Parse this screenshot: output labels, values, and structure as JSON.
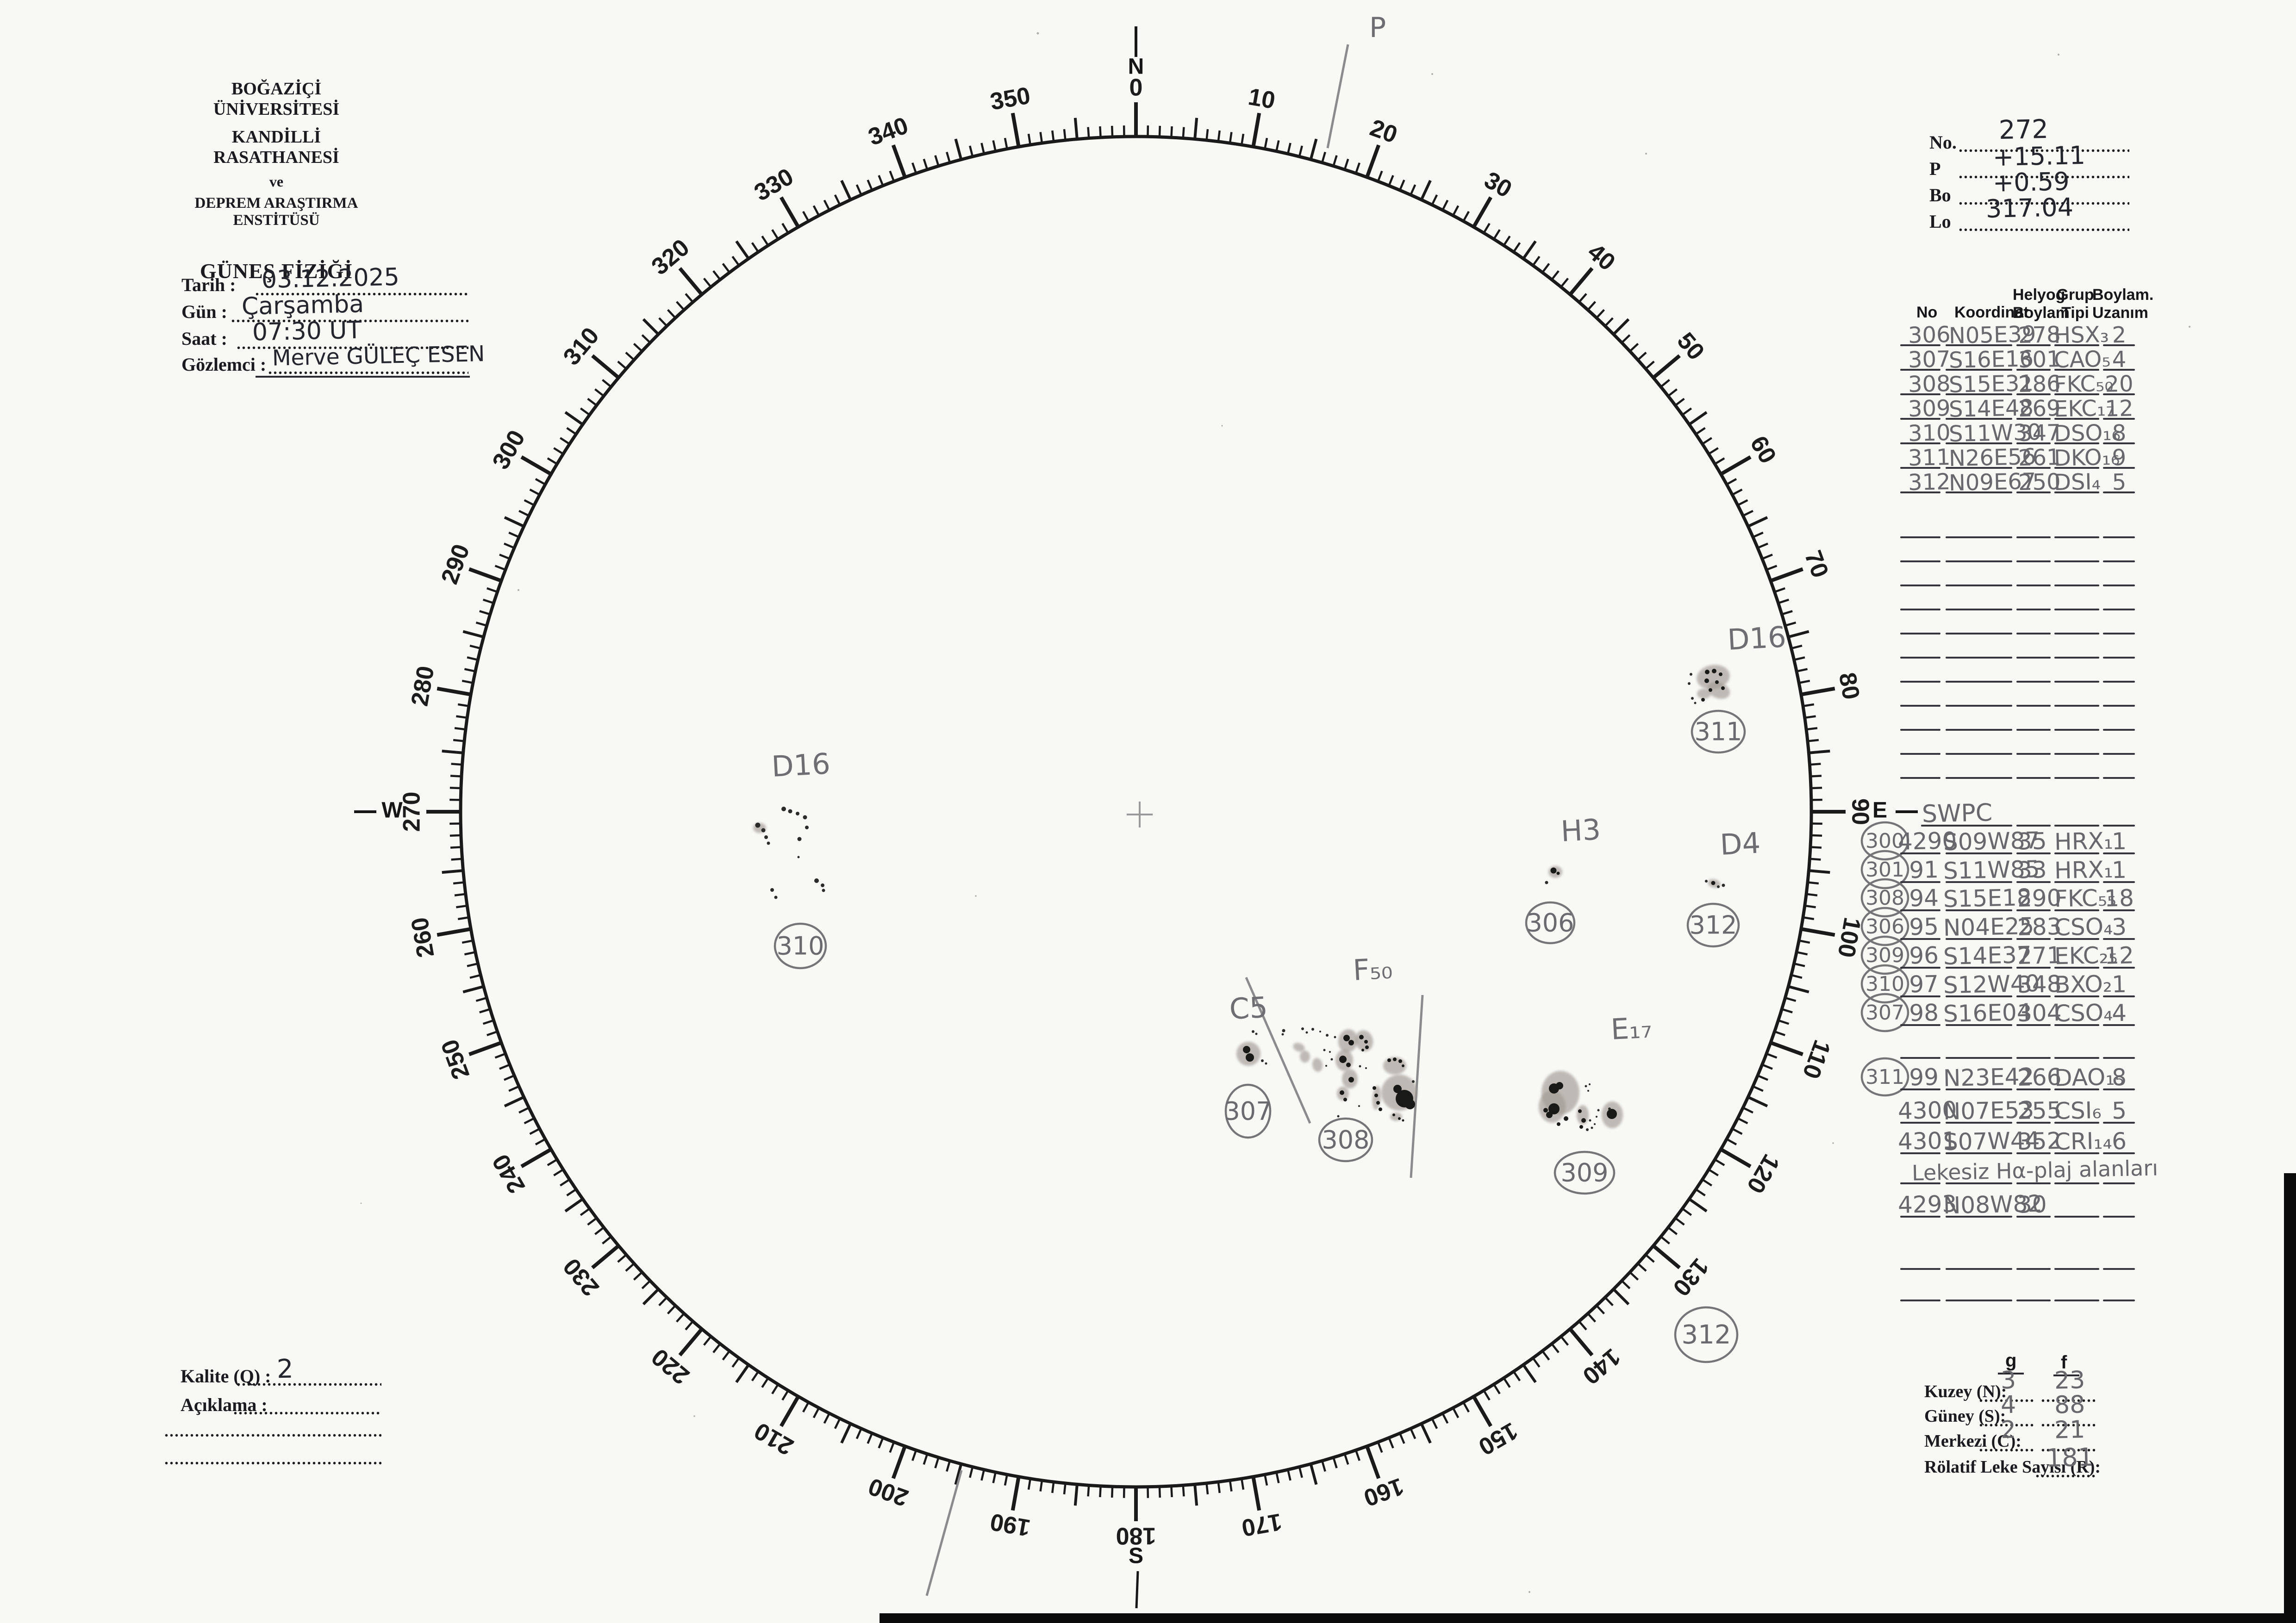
{
  "header": {
    "institution_line1": "BOĞAZİÇİ ÜNİVERSİTESİ",
    "institution_line2": "KANDİLLİ RASATHANESİ",
    "institution_line3": "ve",
    "institution_line4": "DEPREM ARAŞTIRMA ENSTİTÜSÜ",
    "title": "GÜNEŞ FİZİĞİ"
  },
  "form": {
    "tarih_label": "Tarih :",
    "tarih_value": "03.12.2025",
    "gun_label": "Gün :",
    "gun_value": "Çarşamba",
    "saat_label": "Saat :",
    "saat_value": "07:30 UT",
    "gozlemci_label": "Gözlemci :",
    "gozlemci_value": "Merve GÜLEÇ ESEN"
  },
  "ephemeris": {
    "no_label": "No.",
    "no_value": "272",
    "p_label": "P",
    "p_value": "+15.11",
    "bo_label": "Bo",
    "bo_value": "+0.59",
    "lo_label": "Lo",
    "lo_value": "317.04"
  },
  "groups_table": {
    "headers": {
      "no": "No",
      "koordinat": "Koordinat",
      "helyog1": "Helyog",
      "helyog2": "Boylam",
      "grup1": "Grup",
      "grup2": "Tipi",
      "uzanim1": "Boylam.",
      "uzanim2": "Uzanım"
    },
    "rows": [
      {
        "no": "306",
        "koord": "N05E39",
        "helyog": "278",
        "grup": "HSX₃",
        "uzanim": "2"
      },
      {
        "no": "307",
        "koord": "S16E16",
        "helyog": "301",
        "grup": "CAO₅",
        "uzanim": "4"
      },
      {
        "no": "308",
        "koord": "S15E31",
        "helyog": "286",
        "grup": "FKC₅₀",
        "uzanim": "20"
      },
      {
        "no": "309",
        "koord": "S14E48",
        "helyog": "269",
        "grup": "EKC₁₇",
        "uzanim": "12"
      },
      {
        "no": "310",
        "koord": "S11W30",
        "helyog": "347",
        "grup": "DSO₁₆",
        "uzanim": "8"
      },
      {
        "no": "311",
        "koord": "N26E56",
        "helyog": "261",
        "grup": "DKO₁₆",
        "uzanim": "9"
      },
      {
        "no": "312",
        "koord": "N09E67",
        "helyog": "250",
        "grup": "DSI₄",
        "uzanim": "5"
      }
    ]
  },
  "swpc": {
    "title": "SWPC",
    "rows": [
      {
        "circle": "300",
        "no": "4290",
        "koord": "S09W87",
        "helyog": "35",
        "grup": "HRX₁",
        "uzanim": "1"
      },
      {
        "circle": "301",
        "no": "91",
        "koord": "S11W85",
        "helyog": "33",
        "grup": "HRX₁",
        "uzanim": "1"
      },
      {
        "circle": "308",
        "no": "94",
        "koord": "S15E18",
        "helyog": "290",
        "grup": "FKC₅₅",
        "uzanim": "18"
      },
      {
        "circle": "306",
        "no": "95",
        "koord": "N04E25",
        "helyog": "283",
        "grup": "CSO₄",
        "uzanim": "3"
      },
      {
        "circle": "309",
        "no": "96",
        "koord": "S14E37",
        "helyog": "271",
        "grup": "EKC₂₅",
        "uzanim": "12"
      },
      {
        "circle": "310",
        "no": "97",
        "koord": "S12W40",
        "helyog": "348",
        "grup": "BXO₂",
        "uzanim": "1"
      },
      {
        "circle": "307",
        "no": "98",
        "koord": "S16E04",
        "helyog": "304",
        "grup": "CSO₄",
        "uzanim": "4"
      },
      {
        "circle": "311",
        "no": "99",
        "koord": "N23E42",
        "helyog": "266",
        "grup": "DAO₁₅",
        "uzanim": "8"
      },
      {
        "no": "4300",
        "koord": "N07E53",
        "helyog": "255",
        "grup": "CSI₆",
        "uzanim": "5"
      },
      {
        "no": "4301",
        "koord": "S07W44",
        "helyog": "352",
        "grup": "CRI₁₄",
        "uzanim": "6"
      },
      {
        "note": "Lekesiz Hα-plaj alanları"
      },
      {
        "no": "4293",
        "koord": "N08W82",
        "helyog": "30",
        "grup": "",
        "uzanim": ""
      }
    ]
  },
  "summary": {
    "g_label": "g",
    "f_label": "f",
    "rows": [
      {
        "label": "Kuzey (N):",
        "g": "3",
        "f": "23"
      },
      {
        "label": "Güney (S):",
        "g": "4",
        "f": "88"
      },
      {
        "label": "Merkezi (C):",
        "g": "2",
        "f": "21"
      }
    ],
    "relative_label": "Rölatif Leke Sayısı (R):",
    "relative_value": "181"
  },
  "quality": {
    "kalite_label": "Kalite (Q) :",
    "kalite_value": "2",
    "aciklama_label": "Açıklama :"
  },
  "disk": {
    "compass": {
      "north": "N",
      "east": "E",
      "south": "S",
      "west": "W"
    },
    "pole_marker": "P",
    "degree_labels": [
      "0",
      "10",
      "20",
      "30",
      "40",
      "50",
      "60",
      "70",
      "80",
      "90",
      "100",
      "110",
      "120",
      "130",
      "140",
      "150",
      "160",
      "170",
      "180",
      "190",
      "200",
      "210",
      "220",
      "230",
      "240",
      "250",
      "260",
      "270",
      "280",
      "290",
      "300",
      "310",
      "320",
      "330",
      "340",
      "350"
    ],
    "groups": [
      {
        "label": "D16",
        "number": "311"
      },
      {
        "label": "D16",
        "number": "310"
      },
      {
        "label": "H3",
        "number": "306"
      },
      {
        "label": "D4",
        "number": "312"
      },
      {
        "label": "C5",
        "number": "307"
      },
      {
        "label": "F₅₀",
        "number": "308"
      },
      {
        "label": "E₁₇",
        "number": "309"
      }
    ],
    "extra_circle_number": "312"
  }
}
